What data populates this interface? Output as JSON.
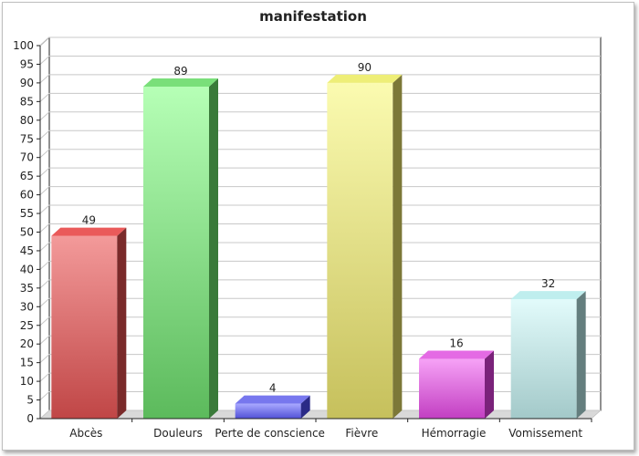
{
  "chart_data": {
    "type": "bar",
    "title": "manifestation",
    "xlabel": "",
    "ylabel": "",
    "ylim": [
      0,
      100
    ],
    "yticks": [
      0,
      5,
      10,
      15,
      20,
      25,
      30,
      35,
      40,
      45,
      50,
      55,
      60,
      65,
      70,
      75,
      80,
      85,
      90,
      95,
      100
    ],
    "grid": true,
    "categories": [
      "Abcès",
      "Douleurs",
      "Perte de conscience",
      "Fièvre",
      "Hémorragie",
      "Vomissement"
    ],
    "values": [
      49,
      89,
      4,
      90,
      16,
      32
    ],
    "value_labels": [
      "49",
      "89",
      "4",
      "90",
      "16",
      "32"
    ],
    "colors": [
      {
        "top": "#f39a9a",
        "bottom": "#c04646",
        "side": "#7a2a2a",
        "cap": "#ea5a5a"
      },
      {
        "top": "#b6ffb6",
        "bottom": "#5cba5c",
        "side": "#3a7a3a",
        "cap": "#7adf7a"
      },
      {
        "top": "#a9a9ff",
        "bottom": "#5050d6",
        "side": "#2a2a86",
        "cap": "#7777ee"
      },
      {
        "top": "#fbfbb0",
        "bottom": "#c6c05c",
        "side": "#7c7838",
        "cap": "#eeee77"
      },
      {
        "top": "#f6a2f6",
        "bottom": "#c23ec2",
        "side": "#7a227a",
        "cap": "#e46ae4"
      },
      {
        "top": "#e2fbfb",
        "bottom": "#a3c9c9",
        "side": "#647e7e",
        "cap": "#bfeeee"
      }
    ]
  }
}
